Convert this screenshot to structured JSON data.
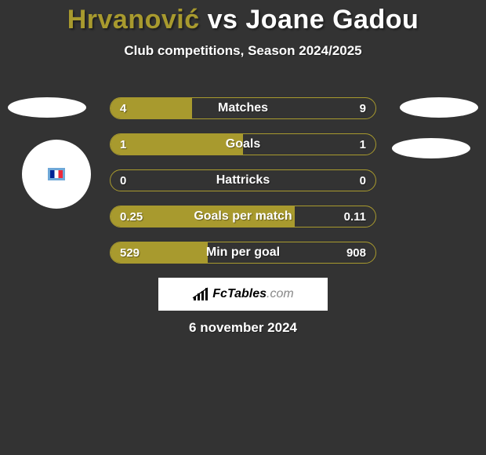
{
  "title": {
    "player1": "Hrvanović",
    "vs": "vs",
    "player2": "Joane Gadou",
    "player1_color": "#a89a2e",
    "vs_color": "#ffffff",
    "player2_color": "#ffffff",
    "fontsize": 34
  },
  "subtitle": "Club competitions, Season 2024/2025",
  "bars": {
    "bar_color": "#a89a2e",
    "track_color": "#333333",
    "text_color": "#ffffff",
    "border_radius": 14,
    "height": 28,
    "gap": 18,
    "label_fontsize": 16,
    "value_fontsize": 15,
    "rows": [
      {
        "label": "Matches",
        "left": "4",
        "right": "9",
        "fill_pct": 30.8
      },
      {
        "label": "Goals",
        "left": "1",
        "right": "1",
        "fill_pct": 50.0
      },
      {
        "label": "Hattricks",
        "left": "0",
        "right": "0",
        "fill_pct": 0.0
      },
      {
        "label": "Goals per match",
        "left": "0.25",
        "right": "0.11",
        "fill_pct": 69.4
      },
      {
        "label": "Min per goal",
        "left": "529",
        "right": "908",
        "fill_pct": 36.8
      }
    ]
  },
  "logo": {
    "prefix": "Fc",
    "suffix": "Tables",
    "domain": ".com",
    "background": "#ffffff",
    "text_color": "#000000",
    "domain_color": "#888888"
  },
  "date": "6 november 2024",
  "background_color": "#333333"
}
